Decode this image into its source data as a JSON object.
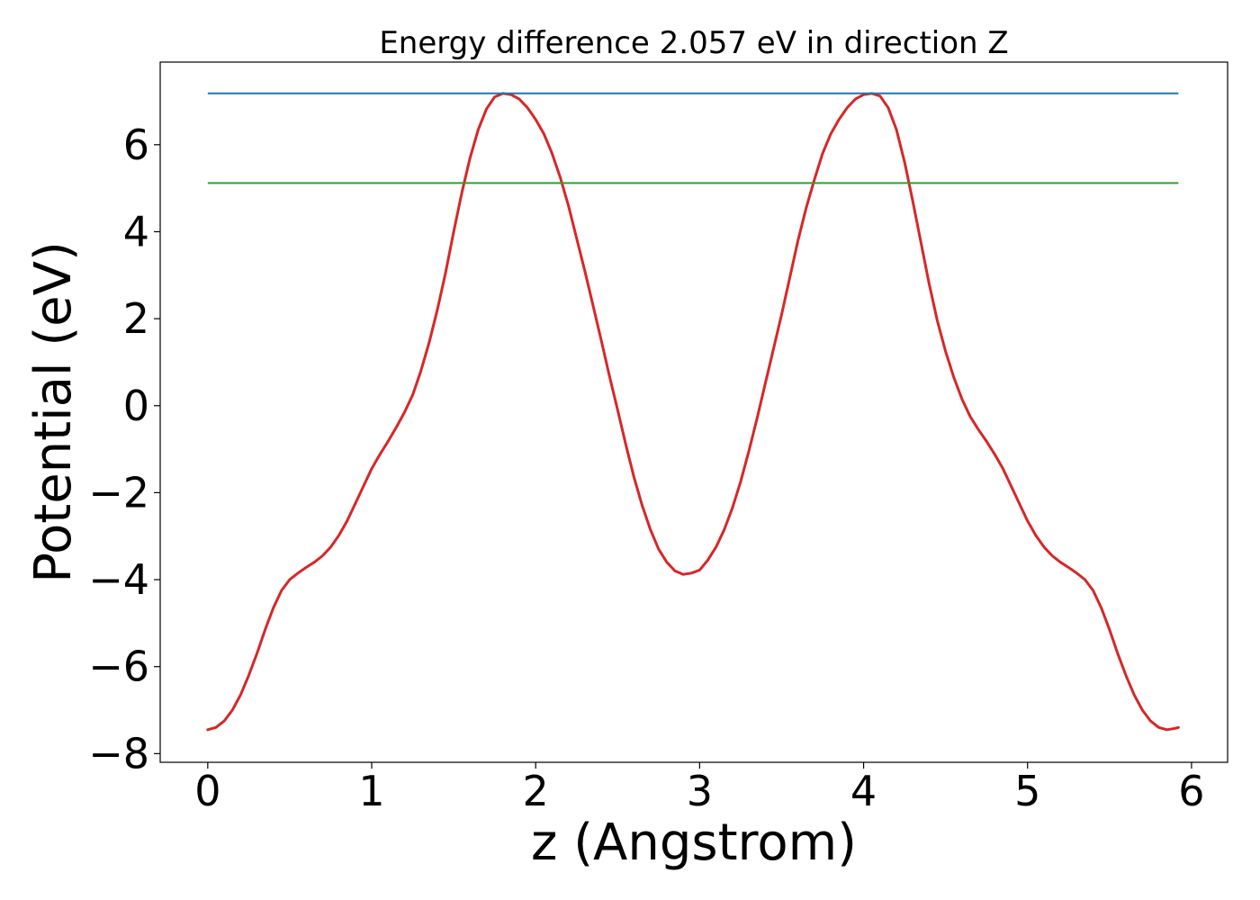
{
  "chart_data": {
    "type": "line",
    "title": "Energy difference 2.057 eV in direction Z",
    "xlabel": "z (Angstrom)",
    "ylabel": "Potential (eV)",
    "xlim": [
      -0.29,
      6.22
    ],
    "ylim": [
      -8.2,
      7.9
    ],
    "xticks": [
      0,
      1,
      2,
      3,
      4,
      5,
      6
    ],
    "xtick_labels": [
      "0",
      "1",
      "2",
      "3",
      "4",
      "5",
      "6"
    ],
    "yticks": [
      -8,
      -6,
      -4,
      -2,
      0,
      2,
      4,
      6
    ],
    "ytick_labels": [
      "−8",
      "−6",
      "−4",
      "−2",
      "0",
      "2",
      "4",
      "6"
    ],
    "grid": false,
    "legend": "none",
    "series": [
      {
        "color": "#d62728",
        "kind": "curve",
        "points": [
          [
            0.0,
            -7.45
          ],
          [
            0.05,
            -7.4
          ],
          [
            0.1,
            -7.25
          ],
          [
            0.15,
            -7.0
          ],
          [
            0.2,
            -6.65
          ],
          [
            0.25,
            -6.2
          ],
          [
            0.3,
            -5.7
          ],
          [
            0.35,
            -5.15
          ],
          [
            0.4,
            -4.65
          ],
          [
            0.45,
            -4.25
          ],
          [
            0.5,
            -4.0
          ],
          [
            0.55,
            -3.85
          ],
          [
            0.6,
            -3.72
          ],
          [
            0.65,
            -3.6
          ],
          [
            0.7,
            -3.45
          ],
          [
            0.75,
            -3.25
          ],
          [
            0.8,
            -2.98
          ],
          [
            0.85,
            -2.65
          ],
          [
            0.9,
            -2.25
          ],
          [
            0.95,
            -1.85
          ],
          [
            1.0,
            -1.45
          ],
          [
            1.05,
            -1.12
          ],
          [
            1.1,
            -0.82
          ],
          [
            1.15,
            -0.5
          ],
          [
            1.2,
            -0.15
          ],
          [
            1.25,
            0.25
          ],
          [
            1.3,
            0.8
          ],
          [
            1.35,
            1.45
          ],
          [
            1.4,
            2.2
          ],
          [
            1.45,
            3.05
          ],
          [
            1.5,
            4.0
          ],
          [
            1.55,
            4.9
          ],
          [
            1.6,
            5.7
          ],
          [
            1.65,
            6.35
          ],
          [
            1.7,
            6.82
          ],
          [
            1.75,
            7.1
          ],
          [
            1.8,
            7.18
          ],
          [
            1.85,
            7.15
          ],
          [
            1.9,
            7.05
          ],
          [
            1.95,
            6.85
          ],
          [
            2.0,
            6.58
          ],
          [
            2.05,
            6.25
          ],
          [
            2.1,
            5.8
          ],
          [
            2.15,
            5.25
          ],
          [
            2.2,
            4.6
          ],
          [
            2.25,
            3.85
          ],
          [
            2.3,
            3.1
          ],
          [
            2.35,
            2.3
          ],
          [
            2.4,
            1.5
          ],
          [
            2.45,
            0.68
          ],
          [
            2.5,
            -0.1
          ],
          [
            2.55,
            -0.9
          ],
          [
            2.6,
            -1.65
          ],
          [
            2.65,
            -2.3
          ],
          [
            2.7,
            -2.85
          ],
          [
            2.75,
            -3.3
          ],
          [
            2.8,
            -3.6
          ],
          [
            2.85,
            -3.8
          ],
          [
            2.9,
            -3.88
          ],
          [
            2.95,
            -3.85
          ],
          [
            3.0,
            -3.78
          ],
          [
            3.05,
            -3.55
          ],
          [
            3.1,
            -3.25
          ],
          [
            3.15,
            -2.85
          ],
          [
            3.2,
            -2.35
          ],
          [
            3.25,
            -1.75
          ],
          [
            3.3,
            -1.05
          ],
          [
            3.35,
            -0.3
          ],
          [
            3.4,
            0.5
          ],
          [
            3.45,
            1.3
          ],
          [
            3.5,
            2.1
          ],
          [
            3.55,
            2.95
          ],
          [
            3.6,
            3.8
          ],
          [
            3.65,
            4.55
          ],
          [
            3.7,
            5.2
          ],
          [
            3.75,
            5.8
          ],
          [
            3.8,
            6.25
          ],
          [
            3.85,
            6.58
          ],
          [
            3.9,
            6.85
          ],
          [
            3.95,
            7.05
          ],
          [
            4.0,
            7.15
          ],
          [
            4.05,
            7.18
          ],
          [
            4.1,
            7.12
          ],
          [
            4.15,
            6.85
          ],
          [
            4.2,
            6.35
          ],
          [
            4.25,
            5.6
          ],
          [
            4.3,
            4.7
          ],
          [
            4.35,
            3.75
          ],
          [
            4.4,
            2.8
          ],
          [
            4.45,
            1.95
          ],
          [
            4.5,
            1.25
          ],
          [
            4.55,
            0.65
          ],
          [
            4.6,
            0.15
          ],
          [
            4.65,
            -0.25
          ],
          [
            4.7,
            -0.55
          ],
          [
            4.75,
            -0.82
          ],
          [
            4.8,
            -1.12
          ],
          [
            4.85,
            -1.45
          ],
          [
            4.9,
            -1.85
          ],
          [
            4.95,
            -2.25
          ],
          [
            5.0,
            -2.65
          ],
          [
            5.05,
            -2.98
          ],
          [
            5.1,
            -3.25
          ],
          [
            5.15,
            -3.45
          ],
          [
            5.2,
            -3.6
          ],
          [
            5.25,
            -3.72
          ],
          [
            5.3,
            -3.85
          ],
          [
            5.35,
            -4.0
          ],
          [
            5.4,
            -4.25
          ],
          [
            5.45,
            -4.65
          ],
          [
            5.5,
            -5.15
          ],
          [
            5.55,
            -5.7
          ],
          [
            5.6,
            -6.2
          ],
          [
            5.65,
            -6.65
          ],
          [
            5.7,
            -7.0
          ],
          [
            5.75,
            -7.25
          ],
          [
            5.8,
            -7.4
          ],
          [
            5.85,
            -7.45
          ],
          [
            5.9,
            -7.42
          ],
          [
            5.92,
            -7.4
          ]
        ]
      },
      {
        "color": "#1f77b4",
        "kind": "hline",
        "y": 7.18,
        "x_range": [
          0.0,
          5.92
        ]
      },
      {
        "color": "#2ca02c",
        "kind": "hline",
        "y": 5.12,
        "x_range": [
          0.0,
          5.92
        ]
      }
    ]
  }
}
